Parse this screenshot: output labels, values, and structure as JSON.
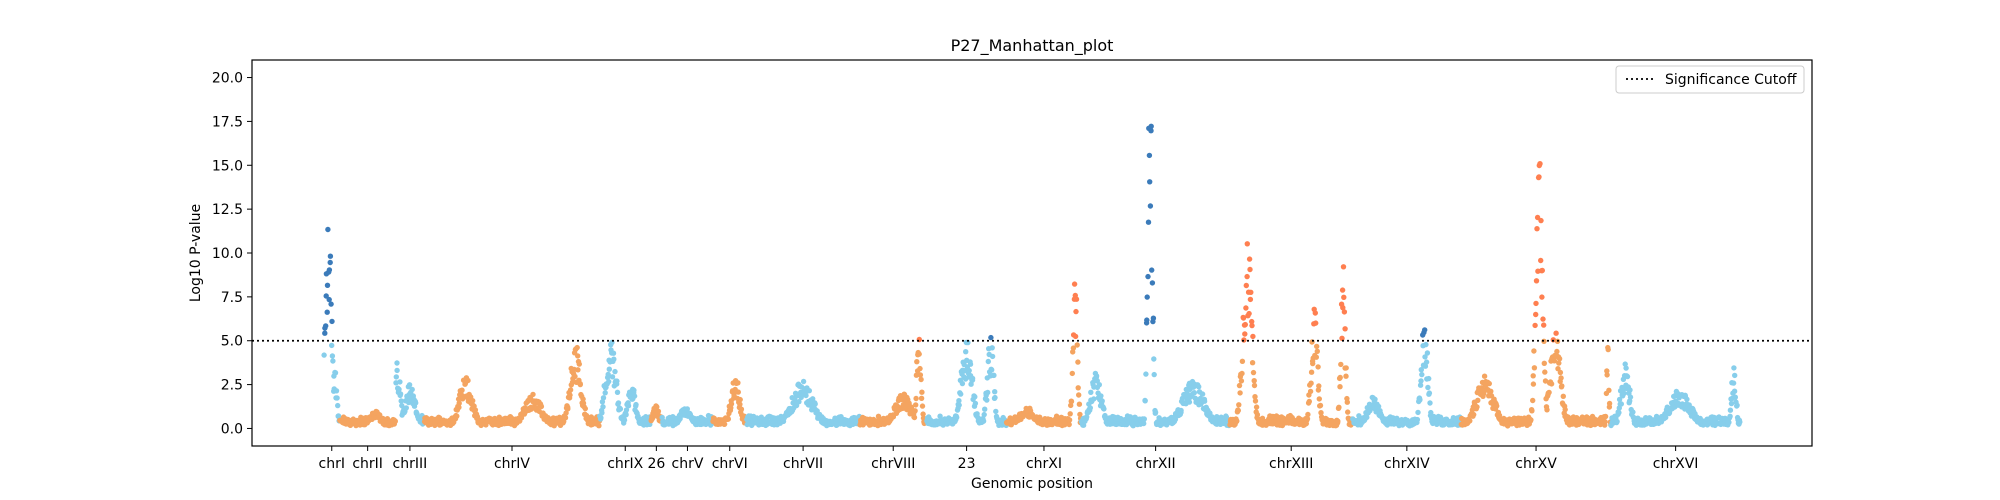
{
  "colors": {
    "chr_light_blue": "#87CEEB",
    "chr_light_orange": "#F4A460",
    "significant_blue": "#3B7BBA",
    "significant_orange": "#FF7F50",
    "cutoff_line": "#000000"
  },
  "chart_data": {
    "type": "scatter",
    "title": "P27_Manhattan_plot",
    "xlabel": "Genomic position",
    "ylabel": "Log10 P-value",
    "ylim": [
      -1,
      21
    ],
    "yticks": [
      0.0,
      2.5,
      5.0,
      7.5,
      10.0,
      12.5,
      15.0,
      17.5,
      20.0
    ],
    "ytick_labels": [
      "0.0",
      "2.5",
      "5.0",
      "7.5",
      "10.0",
      "12.5",
      "15.0",
      "17.5",
      "20.0"
    ],
    "significance_cutoff": 5.0,
    "grid": false,
    "legend": {
      "placement": "top-right",
      "entries": [
        "Significance Cutoff"
      ]
    },
    "chromosomes": [
      {
        "label": "chrI",
        "start": 0,
        "end": 10,
        "color": "light_blue",
        "peaks": [
          {
            "pos": 3,
            "height": 12.0,
            "width": 3
          },
          {
            "pos": 7,
            "height": 3.5,
            "width": 2
          }
        ]
      },
      {
        "label": "chrII",
        "start": 10,
        "end": 45,
        "color": "light_orange",
        "peaks": [
          {
            "pos": 32,
            "height": 1.0,
            "width": 6
          }
        ]
      },
      {
        "label": "chrIII",
        "start": 45,
        "end": 63,
        "color": "light_blue",
        "peaks": [
          {
            "pos": 46,
            "height": 3.8,
            "width": 3
          },
          {
            "pos": 54,
            "height": 2.6,
            "width": 5
          }
        ]
      },
      {
        "label": "chrIV",
        "start": 63,
        "end": 173,
        "color": "light_orange",
        "peaks": [
          {
            "pos": 89,
            "height": 3.0,
            "width": 6
          },
          {
            "pos": 131,
            "height": 2.0,
            "width": 8
          },
          {
            "pos": 158,
            "height": 4.8,
            "width": 5
          }
        ]
      },
      {
        "label": "chrIX",
        "start": 173,
        "end": 205,
        "color": "light_blue",
        "peaks": [
          {
            "pos": 180,
            "height": 5.1,
            "width": 5
          },
          {
            "pos": 193,
            "height": 2.5,
            "width": 4
          }
        ]
      },
      {
        "label": "26",
        "start": 205,
        "end": 212,
        "color": "light_orange",
        "peaks": [
          {
            "pos": 208,
            "height": 1.4,
            "width": 3
          }
        ]
      },
      {
        "label": "chrV",
        "start": 212,
        "end": 244,
        "color": "light_blue",
        "peaks": [
          {
            "pos": 227,
            "height": 1.2,
            "width": 6
          }
        ]
      },
      {
        "label": "chrVI",
        "start": 244,
        "end": 265,
        "color": "light_orange",
        "peaks": [
          {
            "pos": 258,
            "height": 3.2,
            "width": 4
          }
        ]
      },
      {
        "label": "chrVII",
        "start": 265,
        "end": 336,
        "color": "light_blue",
        "peaks": [
          {
            "pos": 300,
            "height": 2.7,
            "width": 10
          }
        ]
      },
      {
        "label": "chrVIII",
        "start": 336,
        "end": 378,
        "color": "light_orange",
        "peaks": [
          {
            "pos": 363,
            "height": 2.0,
            "width": 8
          },
          {
            "pos": 373,
            "height": 5.8,
            "width": 2
          }
        ]
      },
      {
        "label": "23",
        "start": 378,
        "end": 428,
        "color": "light_blue",
        "peaks": [
          {
            "pos": 403,
            "height": 5.2,
            "width": 5
          },
          {
            "pos": 418,
            "height": 5.3,
            "width": 3
          }
        ]
      },
      {
        "label": "chrXI",
        "start": 428,
        "end": 475,
        "color": "light_orange",
        "peaks": [
          {
            "pos": 441,
            "height": 1.2,
            "width": 8
          },
          {
            "pos": 471,
            "height": 9.0,
            "width": 2
          }
        ]
      },
      {
        "label": "chrXII",
        "start": 475,
        "end": 568,
        "color": "light_blue",
        "peaks": [
          {
            "pos": 484,
            "height": 3.2,
            "width": 5
          },
          {
            "pos": 518,
            "height": 20.0,
            "width": 2
          },
          {
            "pos": 545,
            "height": 2.8,
            "width": 10
          }
        ]
      },
      {
        "label": "chrXIII",
        "start": 568,
        "end": 645,
        "color": "light_orange",
        "peaks": [
          {
            "pos": 579,
            "height": 11.3,
            "width": 4
          },
          {
            "pos": 621,
            "height": 7.0,
            "width": 3
          },
          {
            "pos": 639,
            "height": 9.4,
            "width": 2
          }
        ]
      },
      {
        "label": "chrXIV",
        "start": 645,
        "end": 713,
        "color": "light_blue",
        "peaks": [
          {
            "pos": 658,
            "height": 1.8,
            "width": 6
          },
          {
            "pos": 690,
            "height": 6.6,
            "width": 3
          }
        ]
      },
      {
        "label": "chrXV",
        "start": 713,
        "end": 807,
        "color": "light_orange",
        "peaks": [
          {
            "pos": 728,
            "height": 3.0,
            "width": 8
          },
          {
            "pos": 762,
            "height": 16.0,
            "width": 3
          },
          {
            "pos": 772,
            "height": 5.5,
            "width": 5
          },
          {
            "pos": 805,
            "height": 5.3,
            "width": 1
          }
        ]
      },
      {
        "label": "chrXVI",
        "start": 807,
        "end": 888,
        "color": "light_blue",
        "peaks": [
          {
            "pos": 816,
            "height": 3.8,
            "width": 4
          },
          {
            "pos": 850,
            "height": 2.2,
            "width": 10
          },
          {
            "pos": 884,
            "height": 3.9,
            "width": 2
          }
        ]
      }
    ],
    "tick_labels": [
      "chrI",
      "chrII",
      "chrIII",
      "chrIV",
      "chrIX",
      "26",
      "chrV",
      "chrVI",
      "chrVII",
      "chrVIII",
      "23",
      "chrXI",
      "chrXII",
      "chrXIII",
      "chrXIV",
      "chrXV",
      "chrXVI"
    ],
    "xlim": [
      -45,
      933
    ]
  }
}
